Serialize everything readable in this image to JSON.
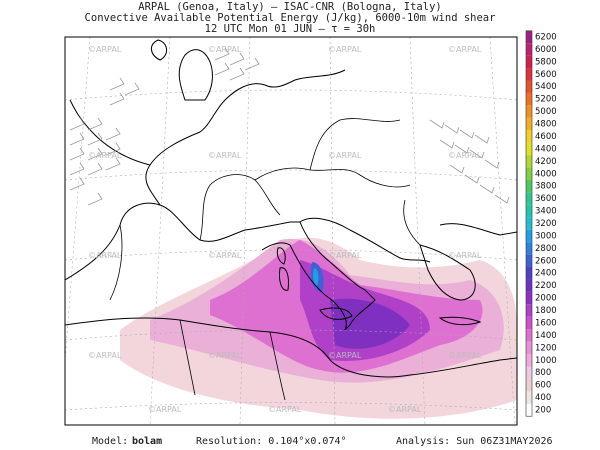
{
  "header": {
    "lines": [
      "ARPAL (Genoa, Italy)  —  ISAC-CNR (Bologna, Italy)",
      "Convective Available Potential Energy (J/kg), 6000-10m wind shear",
      "12 UTC Mon 01 JUN  —  τ = 30h"
    ]
  },
  "watermark": "©ARPAL",
  "colorbar": {
    "levels": [
      200,
      400,
      600,
      800,
      1000,
      1200,
      1400,
      1600,
      1800,
      2000,
      2200,
      2400,
      2600,
      2800,
      3000,
      3200,
      3400,
      3600,
      3800,
      4000,
      4200,
      4400,
      4600,
      4800,
      5000,
      5200,
      5400,
      5600,
      5800,
      6000,
      6200
    ],
    "colors": [
      "#ffffff",
      "#f0e4e4",
      "#ebd0d0",
      "#f0c8e0",
      "#eeaadd",
      "#e890d8",
      "#dd70d0",
      "#d050c8",
      "#b040c8",
      "#9030c0",
      "#7030c0",
      "#5040c8",
      "#4060d8",
      "#3080e0",
      "#20a0e0",
      "#20c0d0",
      "#20c8b0",
      "#30c890",
      "#50c860",
      "#80d040",
      "#b0d830",
      "#e0e020",
      "#f0d020",
      "#f0b020",
      "#f09020",
      "#f07020",
      "#e85030",
      "#e03040",
      "#d02050",
      "#c02070",
      "#a02080"
    ]
  },
  "footer": {
    "model_label": "Model:",
    "model": "bolam",
    "resolution": "Resolution: 0.104°x0.074°",
    "analysis": "Analysis: Sun 06Z31MAY2026"
  }
}
